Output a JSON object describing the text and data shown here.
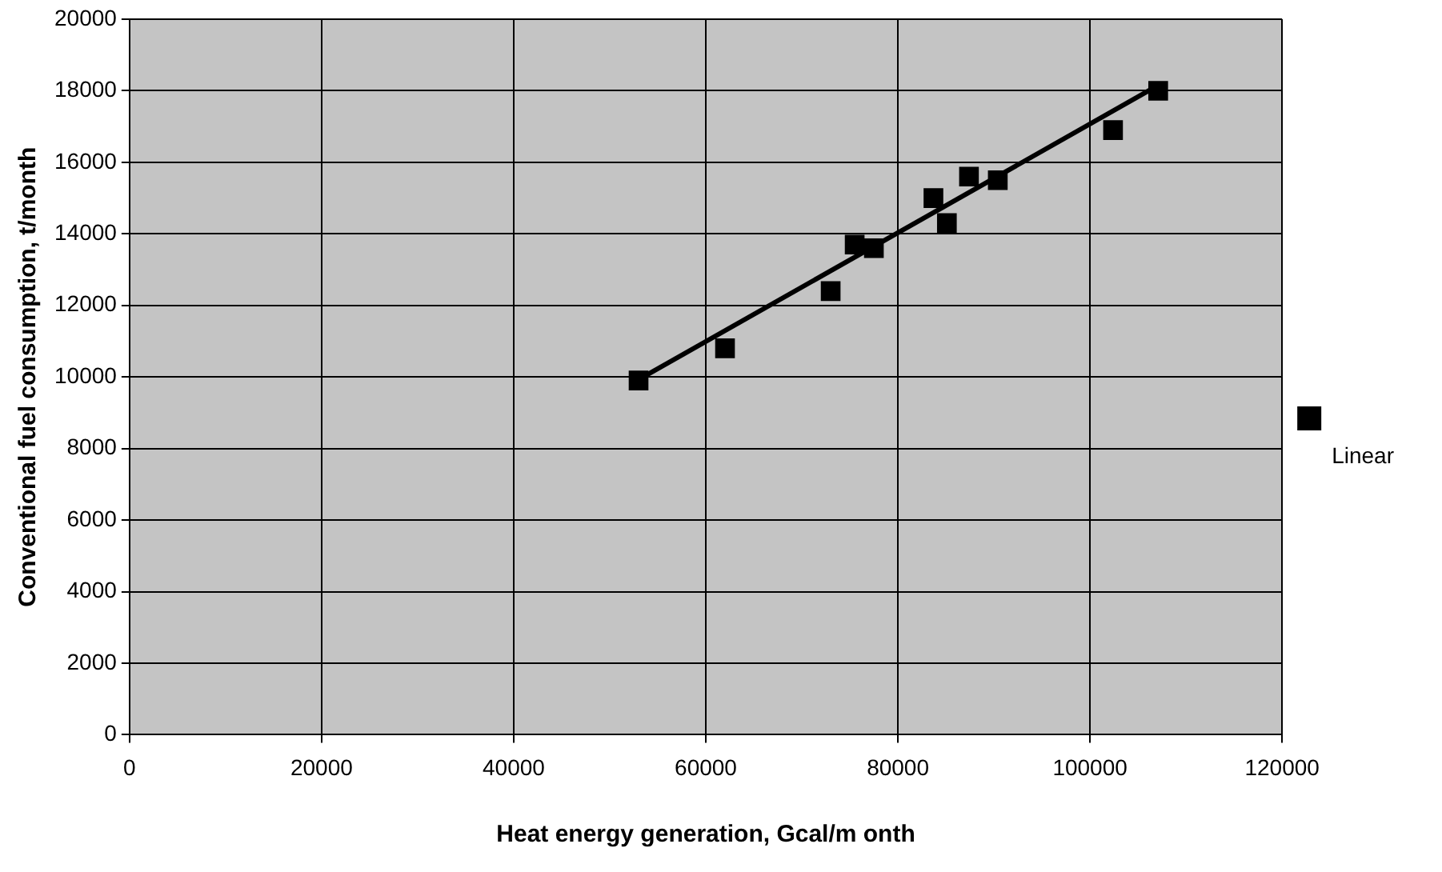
{
  "chart_data": {
    "type": "scatter",
    "xlabel": "Heat energy generation, Gcal/m onth",
    "ylabel": "Conventional fuel consumption, t/month",
    "xlim": [
      0,
      120000
    ],
    "xticks": [
      0,
      20000,
      40000,
      60000,
      80000,
      100000,
      120000
    ],
    "ylim": [
      0,
      20000
    ],
    "yticks": [
      0,
      2000,
      4000,
      6000,
      8000,
      10000,
      12000,
      14000,
      16000,
      18000,
      20000
    ],
    "grid": true,
    "legend": "right",
    "marker": "square",
    "series": [
      {
        "color": "#000000",
        "x": [
          53000,
          62000,
          73000,
          75500,
          77500,
          83700,
          85100,
          87400,
          90400,
          102400,
          107100
        ],
        "values": [
          9900,
          10800,
          12400,
          13700,
          13600,
          15000,
          14300,
          15600,
          15500,
          16900,
          18000
        ]
      },
      {
        "type": "line",
        "name": "Linear",
        "color": "#000000",
        "line_style": "solid",
        "marker": "none",
        "x": [
          52500,
          107100
        ],
        "values": [
          9850,
          18150
        ]
      }
    ]
  }
}
